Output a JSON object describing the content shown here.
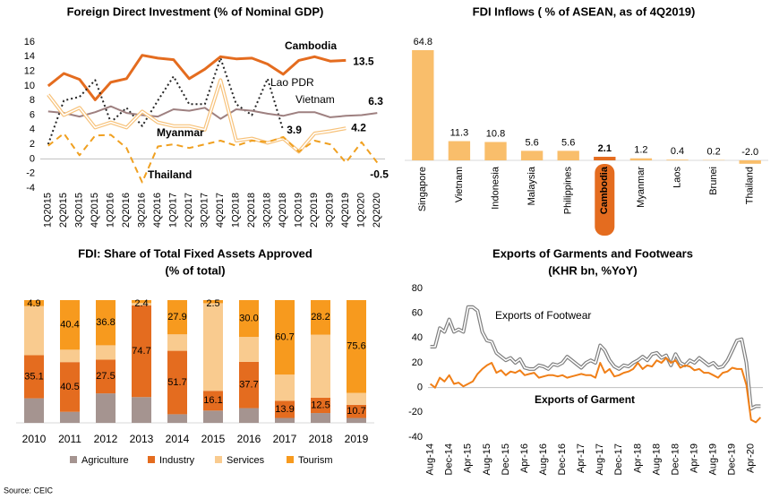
{
  "chart_data": [
    {
      "type": "line",
      "title": "Foreign Direct Investment (% of Nominal GDP)",
      "categories": [
        "1Q2015",
        "2Q2015",
        "3Q2015",
        "4Q2015",
        "1Q2016",
        "2Q2016",
        "3Q2016",
        "4Q2016",
        "1Q2017",
        "2Q2017",
        "3Q2017",
        "4Q2017",
        "1Q2018",
        "2Q2018",
        "3Q2018",
        "4Q2018",
        "1Q2019",
        "2Q2019",
        "3Q2019",
        "4Q2019",
        "1Q2020",
        "2Q2020"
      ],
      "ylim": [
        -4,
        16
      ],
      "yticks": [
        -4,
        -2,
        0,
        2,
        4,
        6,
        8,
        10,
        12,
        14,
        16
      ],
      "grid": false,
      "series": [
        {
          "name": "Cambodia",
          "color": "#E46C1F",
          "style": "solid",
          "values": [
            10.0,
            11.7,
            10.9,
            8.1,
            10.5,
            11.0,
            14.2,
            13.8,
            13.6,
            11.0,
            12.3,
            14.0,
            13.7,
            13.8,
            13.0,
            11.6,
            13.5,
            14.0,
            13.4,
            13.5,
            null,
            null
          ]
        },
        {
          "name": "Lao PDR",
          "color": "#262626",
          "style": "dotted",
          "values": [
            2.0,
            8.0,
            8.5,
            10.8,
            5.0,
            7.0,
            4.5,
            8.0,
            11.3,
            7.5,
            7.5,
            13.8,
            7.5,
            6.0,
            11.0,
            3.9,
            null,
            null,
            null,
            null,
            null,
            null
          ]
        },
        {
          "name": "Vietnam",
          "color": "#9E8080",
          "style": "solid",
          "values": [
            6.5,
            6.3,
            5.8,
            6.4,
            7.2,
            6.3,
            6.0,
            5.8,
            6.8,
            6.6,
            7.0,
            5.5,
            6.8,
            6.6,
            6.2,
            5.9,
            6.4,
            6.4,
            5.7,
            5.9,
            6.0,
            6.3
          ]
        },
        {
          "name": "Myanmar",
          "color": "#F7C27A",
          "style": "double",
          "values": [
            8.8,
            6.0,
            7.0,
            4.3,
            5.0,
            4.3,
            6.5,
            5.0,
            4.5,
            4.5,
            4.0,
            10.8,
            2.5,
            2.8,
            2.2,
            2.8,
            1.0,
            3.5,
            3.8,
            4.2,
            null,
            null
          ]
        },
        {
          "name": "Thailand",
          "color": "#F0A020",
          "style": "dashed",
          "values": [
            1.8,
            3.5,
            0.5,
            3.2,
            3.3,
            1.5,
            -3.2,
            1.7,
            2.0,
            1.5,
            2.0,
            2.5,
            1.8,
            2.5,
            2.3,
            3.0,
            1.0,
            2.5,
            2.0,
            -0.5,
            2.3,
            -0.5
          ]
        }
      ]
    },
    {
      "type": "bar",
      "title": "FDI Inflows ( % of ASEAN, as of 4Q2019)",
      "categories": [
        "Singapore",
        "Vietnam",
        "Indonesia",
        "Malaysia",
        "Philippines",
        "Cambodia",
        "Myanmar",
        "Laos",
        "Brunei",
        "Thailand"
      ],
      "values": [
        64.8,
        11.3,
        10.8,
        5.6,
        5.6,
        2.1,
        1.2,
        0.4,
        0.2,
        -2.0
      ],
      "value_labels": [
        "64.8",
        "11.3",
        "10.8",
        "5.6",
        "5.6",
        "2.1",
        "1.2",
        "0.4",
        "0.2",
        "-2.0"
      ],
      "colors": [
        "#F9BE6B",
        "#F9BE6B",
        "#F9BE6B",
        "#F9BE6B",
        "#F9BE6B",
        "#E46C1F",
        "#F9BE6B",
        "#F9BE6B",
        "#F9BE6B",
        "#F9BE6B"
      ],
      "highlight_color": "#E46C1F"
    },
    {
      "type": "stacked_bar",
      "title": "FDI: Share of Total Fixed Assets Approved",
      "subtitle": "(% of total)",
      "categories": [
        "2010",
        "2011",
        "2012",
        "2013",
        "2014",
        "2015",
        "2016",
        "2017",
        "2018",
        "2019"
      ],
      "series": [
        {
          "name": "Agriculture",
          "color": "#A59490",
          "values": [
            20,
            9,
            24,
            21,
            7,
            10,
            12,
            4,
            8,
            4
          ]
        },
        {
          "name": "Industry",
          "color": "#E46C1F",
          "values": [
            35.1,
            40.5,
            27.5,
            74.7,
            51.7,
            16.1,
            37.7,
            13.9,
            12.5,
            10.7
          ],
          "value_labels": [
            "35.1",
            "40.5",
            "27.5",
            "74.7",
            "51.7",
            "16.1",
            "37.7",
            "13.9",
            "12.5",
            "10.7"
          ]
        },
        {
          "name": "Services",
          "color": "#F9CB8F",
          "values": [
            40.0,
            10.1,
            11.7,
            1.9,
            13.4,
            71.4,
            20.3,
            21.4,
            51.3,
            9.7
          ]
        },
        {
          "name": "Tourism",
          "color": "#F79A1E",
          "values": [
            4.9,
            40.4,
            36.8,
            2.4,
            27.9,
            2.5,
            30.0,
            60.7,
            28.2,
            75.6
          ],
          "value_labels": [
            "4.9",
            "40.4",
            "36.8",
            "2.4",
            "27.9",
            "2.5",
            "30.0",
            "60.7",
            "28.2",
            "75.6"
          ]
        }
      ]
    },
    {
      "type": "line",
      "title": "Exports of Garments and Footwears",
      "subtitle": "(KHR bn, %YoY)",
      "categories": [
        "Aug-14",
        null,
        null,
        null,
        "Dec-14",
        null,
        null,
        null,
        "Apr-15",
        null,
        null,
        null,
        "Aug-15",
        null,
        null,
        null,
        "Dec-15",
        null,
        null,
        null,
        "Apr-16",
        null,
        null,
        null,
        "Aug-16",
        null,
        null,
        null,
        "Dec-16",
        null,
        null,
        null,
        "Apr-17",
        null,
        null,
        null,
        "Aug-17",
        null,
        null,
        null,
        "Dec-17",
        null,
        null,
        null,
        "Apr-18",
        null,
        null,
        null,
        "Aug-18",
        null,
        null,
        null,
        "Dec-18",
        null,
        null,
        null,
        "Apr-19",
        null,
        null,
        null,
        "Aug-19",
        null,
        null,
        null,
        "Dec-19",
        null,
        null,
        null,
        "Apr-20",
        null,
        null
      ],
      "ylim": [
        -40,
        80
      ],
      "yticks": [
        -40,
        -20,
        0,
        20,
        40,
        60,
        80
      ],
      "grid": false,
      "series": [
        {
          "name": "Exports of Footwear",
          "color": "#7F7F7F",
          "style": "double",
          "values": [
            33,
            33,
            48,
            45,
            55,
            45,
            47,
            45,
            65,
            65,
            62,
            45,
            38,
            37,
            28,
            25,
            22,
            24,
            20,
            23,
            16,
            15,
            15,
            18,
            17,
            15,
            19,
            18,
            20,
            25,
            22,
            19,
            16,
            20,
            22,
            20,
            34,
            30,
            22,
            17,
            15,
            18,
            17,
            20,
            22,
            25,
            22,
            27,
            28,
            24,
            26,
            18,
            27,
            20,
            18,
            22,
            20,
            24,
            21,
            18,
            20,
            16,
            17,
            22,
            30,
            38,
            39,
            20,
            -17,
            -15,
            -15
          ]
        },
        {
          "name": "Exports of Garment",
          "color": "#F07F17",
          "style": "solid",
          "values": [
            3,
            0,
            8,
            5,
            10,
            3,
            4,
            1,
            3,
            5,
            11,
            15,
            18,
            20,
            12,
            14,
            10,
            13,
            12,
            14,
            10,
            11,
            12,
            8,
            9,
            10,
            10,
            9,
            10,
            8,
            9,
            10,
            11,
            10,
            10,
            8,
            20,
            12,
            15,
            9,
            10,
            12,
            13,
            15,
            20,
            15,
            18,
            17,
            22,
            20,
            24,
            20,
            22,
            16,
            18,
            17,
            14,
            15,
            12,
            12,
            10,
            8,
            12,
            13,
            16,
            15,
            15,
            2,
            -26,
            -28,
            -24
          ]
        }
      ]
    }
  ],
  "source": "Source: CEIC"
}
